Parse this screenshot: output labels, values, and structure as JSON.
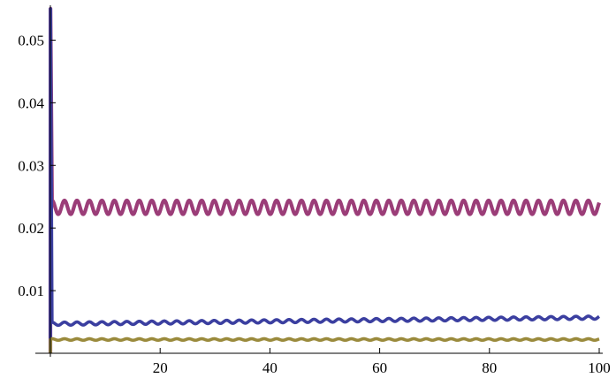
{
  "chart_data": {
    "type": "line",
    "title": "",
    "xlabel": "",
    "ylabel": "",
    "xlim": [
      0,
      100
    ],
    "ylim": [
      0,
      0.055
    ],
    "grid": false,
    "x_ticks": [
      20,
      40,
      60,
      80,
      100
    ],
    "x_tick_labels": [
      "20",
      "40",
      "60",
      "80",
      "100"
    ],
    "y_ticks": [
      0.01,
      0.02,
      0.03,
      0.04,
      0.05
    ],
    "y_tick_labels": [
      "0.01",
      "0.02",
      "0.03",
      "0.04",
      "0.05"
    ],
    "series": [
      {
        "color": "#9b3d78",
        "initial_peak": 0.055,
        "start_level": 0.0233,
        "end_level": 0.0233,
        "oscillation_amplitude": 0.0011,
        "oscillation_periods": 44
      },
      {
        "color": "#3b3fa0",
        "initial_peak": 0.055,
        "start_level": 0.0047,
        "end_level": 0.0057,
        "oscillation_amplitude": 0.00025,
        "oscillation_periods": 44
      },
      {
        "color": "#9a8a3c",
        "initial_peak": 0.0022,
        "start_level": 0.0022,
        "end_level": 0.0022,
        "oscillation_amplitude": 0.00012,
        "oscillation_periods": 44
      }
    ]
  }
}
